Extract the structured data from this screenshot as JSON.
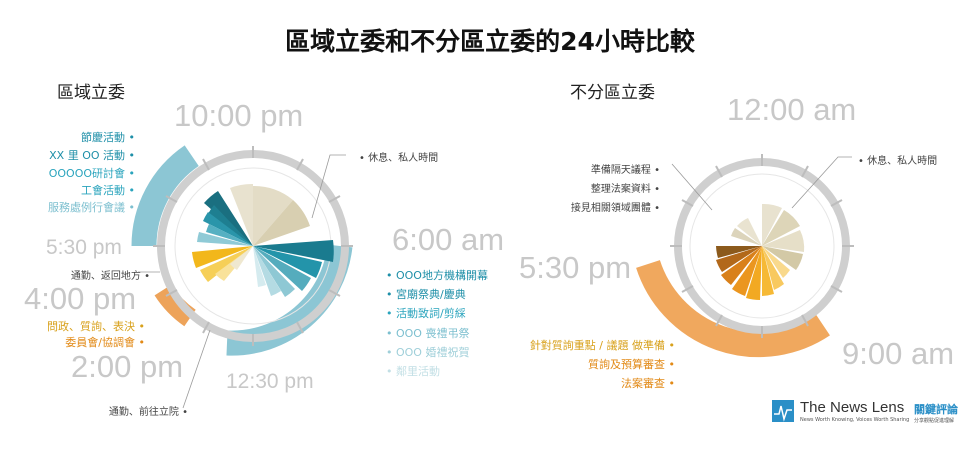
{
  "title": "區域立委和不分區立委的24小時比較",
  "left": {
    "heading": "區域立委",
    "times": [
      "10:00 pm",
      "6:00 am",
      "12:30 pm",
      "2:00 pm",
      "4:00 pm",
      "5:30 pm"
    ],
    "labels_left": [
      "節慶活動",
      "XX 里 OO 活動",
      "OOOOO研討會",
      "工會活動",
      "服務處例行會議"
    ],
    "label_rest": "休息、私人時間",
    "label_commute_back": "通勤、返回地方",
    "label_commute_go": "通勤、前往立院",
    "labels_legislature": [
      "問政、質詢、表決",
      "委員會/協調會"
    ],
    "labels_right": [
      "OOO地方機構開幕",
      "宮廟祭典/慶典",
      "活動致詞/剪綵",
      "OOO 喪禮弔祭",
      "OOO 婚禮祝賀",
      "鄰里活動"
    ]
  },
  "right": {
    "heading": "不分區立委",
    "times": [
      "12:00 am",
      "5:30 pm",
      "9:00 am"
    ],
    "label_rest": "休息、私人時間",
    "labels_left": [
      "準備隔天議程",
      "整理法案資料",
      "接見相關領域團體"
    ],
    "labels_bottom": [
      "針對質詢重點 / 議題 做準備",
      "質詢及預算審查",
      "法案審查"
    ]
  },
  "logo": {
    "name": "The News Lens",
    "cn": "關鍵評論",
    "tagline": "News Worth Knowing, Voices Worth Sharing",
    "cn_tagline": "分享觀點促進理解"
  }
}
